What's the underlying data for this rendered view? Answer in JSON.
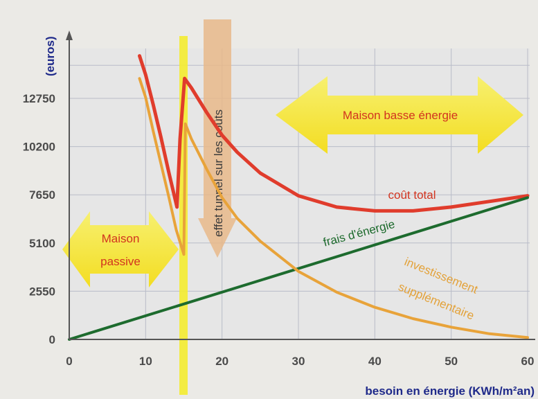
{
  "chart_data": {
    "type": "line",
    "xlabel": "besoin en énergie (KWh/m²an)",
    "ylabel": "(euros)",
    "xlim": [
      0,
      60
    ],
    "ylim": [
      0,
      15000
    ],
    "x_ticks": [
      "0",
      "10",
      "20",
      "30",
      "40",
      "50",
      "60"
    ],
    "y_ticks": [
      "0",
      "2550",
      "5100",
      "7650",
      "10200",
      "12750"
    ],
    "grid": true,
    "series": [
      {
        "name": "coût total",
        "color": "#e03c2c",
        "x": [
          9.2,
          10,
          11,
          12,
          13,
          14.1,
          14.5,
          15.1,
          16,
          18,
          20,
          22,
          25,
          30,
          35,
          40,
          45,
          50,
          55,
          60
        ],
        "y": [
          15000,
          14000,
          12400,
          10700,
          8900,
          7000,
          10600,
          13800,
          13300,
          12000,
          10800,
          9900,
          8800,
          7600,
          7000,
          6800,
          6800,
          7000,
          7300,
          7600
        ]
      },
      {
        "name": "frais d'énergie",
        "color": "#1d6b2e",
        "x": [
          0,
          60
        ],
        "y": [
          0,
          7500
        ]
      },
      {
        "name": "Investissement supplémentaire",
        "color": "#e8a33a",
        "x": [
          9.2,
          10,
          11,
          12,
          13,
          14,
          15,
          15.2,
          16,
          18,
          20,
          22,
          25,
          30,
          35,
          40,
          45,
          50,
          55,
          60
        ],
        "y": [
          13800,
          12800,
          11000,
          9300,
          7600,
          5800,
          4500,
          11400,
          10600,
          9000,
          7500,
          6400,
          5200,
          3600,
          2500,
          1700,
          1100,
          650,
          300,
          100
        ]
      }
    ],
    "annotations": {
      "passive": [
        "Maison",
        "passive"
      ],
      "tunnel": "effet tunnel sur les coûts",
      "low_energy": "Maison basse énergie",
      "total_cost": "coût total",
      "energy_costs": "frais d'énergie",
      "investment": [
        "investissement",
        "supplémentaire"
      ]
    }
  }
}
